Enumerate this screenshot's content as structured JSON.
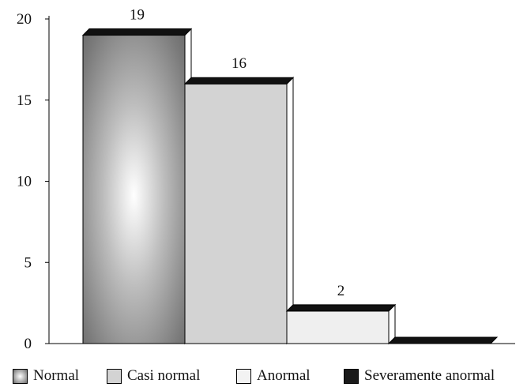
{
  "chart_data": {
    "type": "bar",
    "title": "",
    "xlabel": "",
    "ylabel": "",
    "categories": [
      "Normal",
      "Casi normal",
      "Anormal",
      "Severamente anormal"
    ],
    "values": [
      19,
      16,
      2,
      0
    ],
    "data_labels": [
      "19",
      "16",
      "2",
      ""
    ],
    "ylim": [
      0,
      20
    ],
    "yticks": [
      0,
      5,
      10,
      15,
      20
    ],
    "ytick_labels": [
      "0",
      "5",
      "10",
      "15",
      "20"
    ],
    "grid": false,
    "legend_position": "bottom",
    "style": "3d-bars",
    "colors": {
      "normal": "radial-gradient-gray",
      "casi_normal": "#d3d3d3",
      "anormal": "#efefef",
      "severamente_anormal": "#1a1a1a",
      "bar_top": "#111111"
    }
  },
  "legend": {
    "items": [
      {
        "label": "Normal"
      },
      {
        "label": "Casi normal"
      },
      {
        "label": "Anormal"
      },
      {
        "label": "Severamente anormal"
      }
    ]
  }
}
